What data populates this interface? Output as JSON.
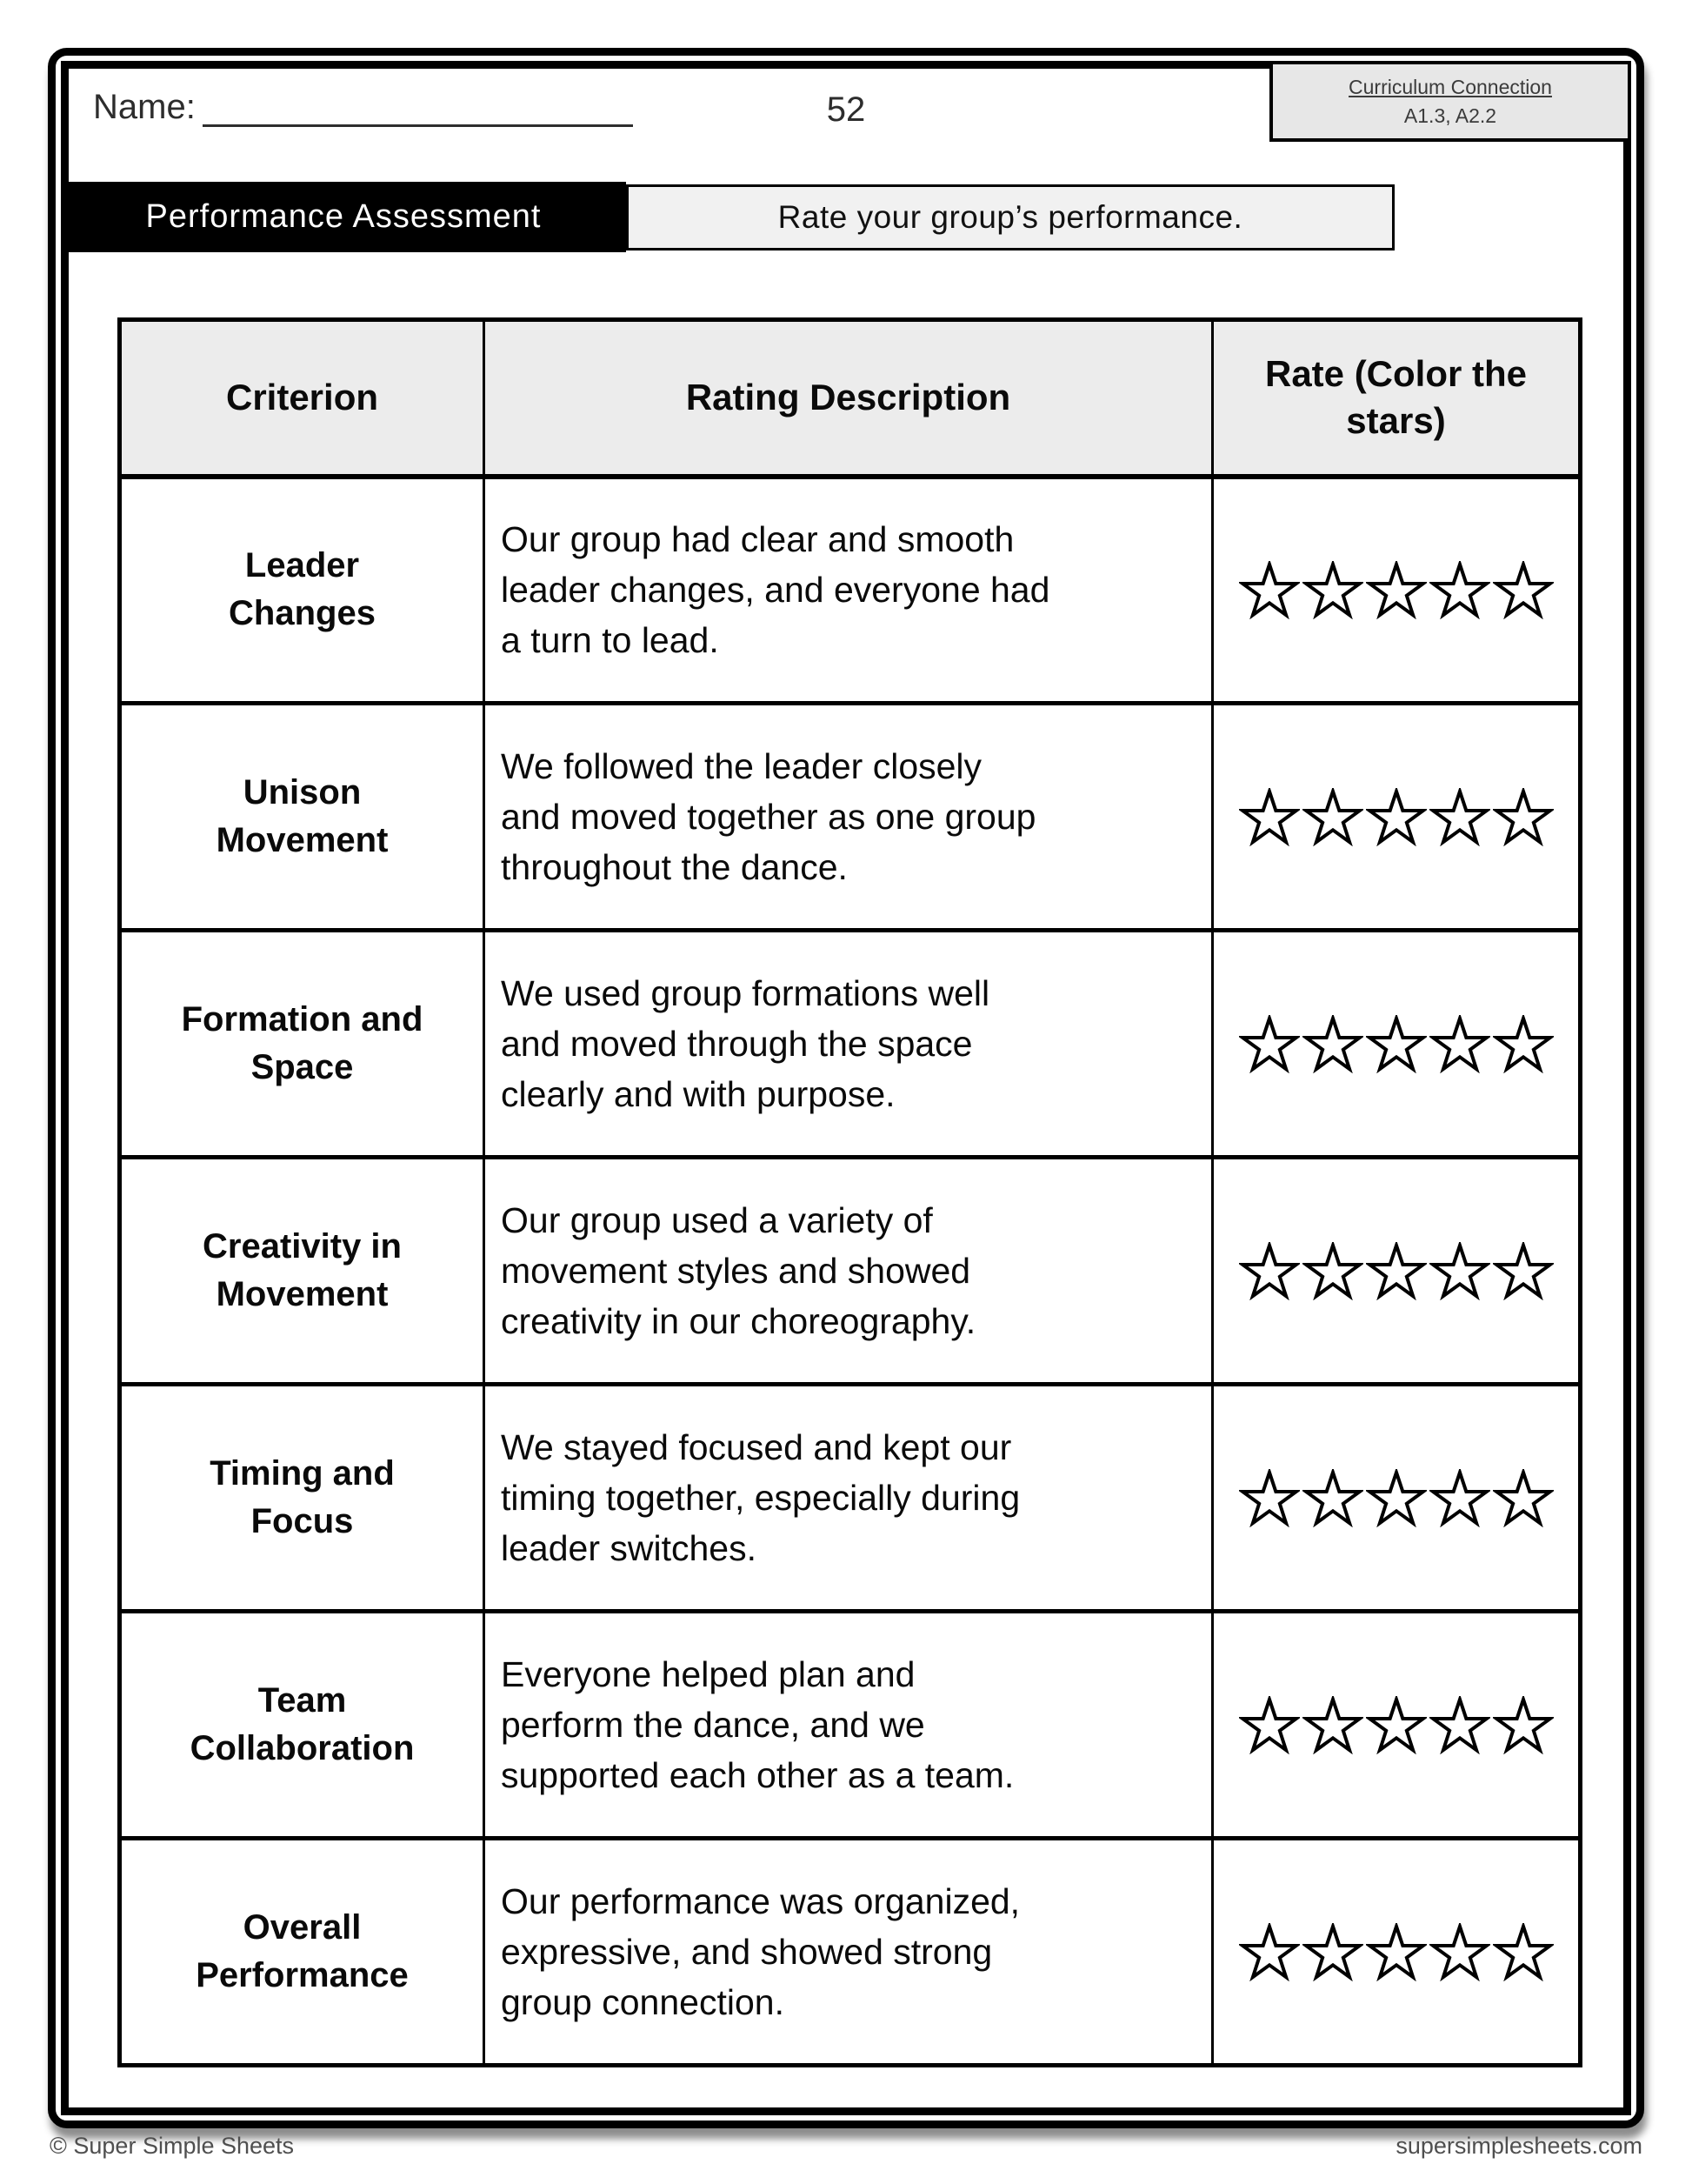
{
  "header": {
    "name_label": "Name:",
    "page_number": "52",
    "curriculum": {
      "title": "Curriculum Connection",
      "codes": "A1.3, A2.2"
    }
  },
  "section": {
    "title": "Performance Assessment",
    "instruction": "Rate your group’s performance."
  },
  "table": {
    "headers": [
      "Criterion",
      "Rating Description",
      "Rate (Color the\nstars)"
    ],
    "stars_per_row": 5,
    "rows": [
      {
        "criterion": "Leader\nChanges",
        "description": "Our group had clear and smooth\nleader changes, and everyone had\na turn to lead."
      },
      {
        "criterion": "Unison\nMovement",
        "description": "We followed the leader closely\nand moved together as one group\nthroughout the dance."
      },
      {
        "criterion": "Formation and\nSpace",
        "description": "We used group formations well\nand moved through the space\nclearly and with purpose."
      },
      {
        "criterion": "Creativity in\nMovement",
        "description": "Our group used a variety of\nmovement styles and showed\ncreativity in our choreography."
      },
      {
        "criterion": "Timing and\nFocus",
        "description": "We stayed focused and kept our\ntiming together, especially during\nleader switches."
      },
      {
        "criterion": "Team\nCollaboration",
        "description": "Everyone helped plan and\nperform the dance, and we\nsupported each other as a team."
      },
      {
        "criterion": "Overall\nPerformance",
        "description": "Our performance was organized,\nexpressive, and showed strong\ngroup connection."
      }
    ]
  },
  "footer": {
    "left": "© Super Simple Sheets",
    "right": "supersimplesheets.com"
  },
  "colors": {
    "ink": "#000000",
    "table_header_bg": "#ececec",
    "instruction_bg": "#f1f1f1",
    "curriculum_bg": "#e7e7e7",
    "muted_text": "#4f4f4f"
  }
}
